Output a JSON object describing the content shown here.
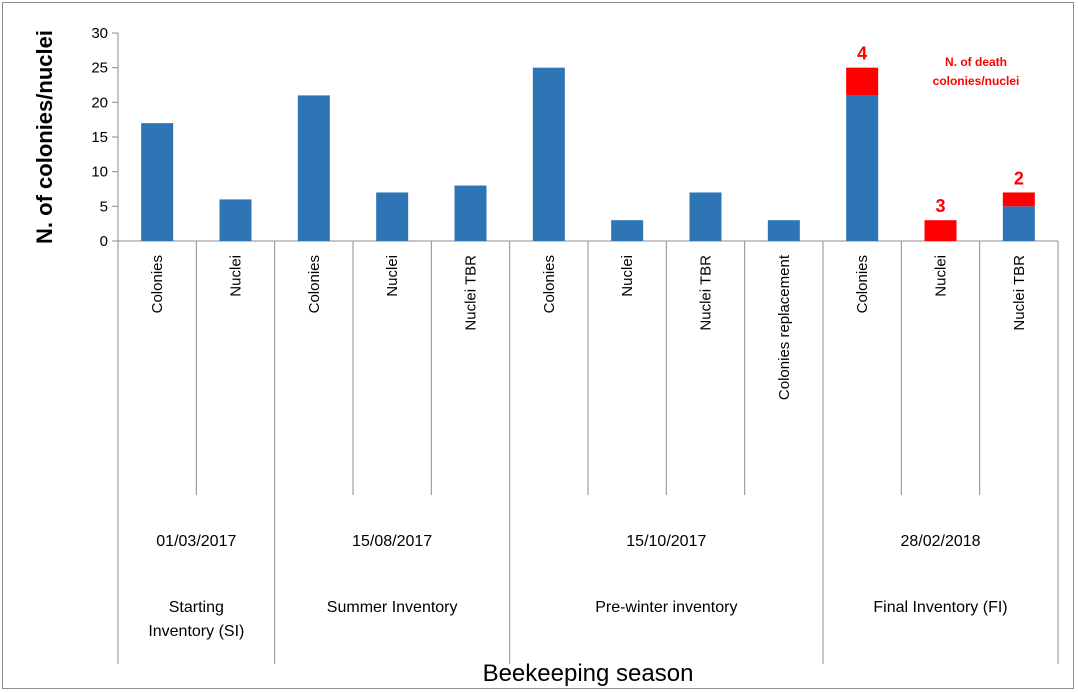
{
  "chart_data": {
    "type": "bar",
    "stacked": true,
    "ylabel": "N. of colonies/nuclei",
    "xlabel": "Beekeeping season",
    "ylim": [
      0,
      30
    ],
    "yticks": [
      0,
      5,
      10,
      15,
      20,
      25,
      30
    ],
    "grid": false,
    "legend": "none",
    "categories": [
      "Colonies",
      "Nuclei",
      "Colonies",
      "Nuclei",
      "Nuclei TBR",
      "Colonies",
      "Nuclei",
      "Nuclei TBR",
      "Colonies replacement",
      "Colonies",
      "Nuclei",
      "Nuclei TBR"
    ],
    "series": [
      {
        "values": [
          17,
          6,
          21,
          7,
          8,
          25,
          3,
          7,
          3,
          21,
          0,
          5
        ],
        "color": "#2e75b6"
      },
      {
        "values": [
          0,
          0,
          0,
          0,
          0,
          0,
          0,
          0,
          0,
          4,
          3,
          2
        ],
        "color": "#ff0000"
      }
    ],
    "annotations": [
      "4",
      "3",
      "2"
    ],
    "annotation_note": [
      "N. of death",
      "colonies/nuclei"
    ],
    "groups": [
      {
        "date": "01/03/2017",
        "label_lines": [
          "Starting",
          "Inventory (SI)"
        ],
        "size": 2
      },
      {
        "date": "15/08/2017",
        "label_lines": [
          "Summer Inventory"
        ],
        "size": 3
      },
      {
        "date": "15/10/2017",
        "label_lines": [
          "Pre-winter inventory"
        ],
        "size": 4
      },
      {
        "date": "28/02/2018",
        "label_lines": [
          "Final Inventory (FI)"
        ],
        "size": 3
      }
    ]
  }
}
